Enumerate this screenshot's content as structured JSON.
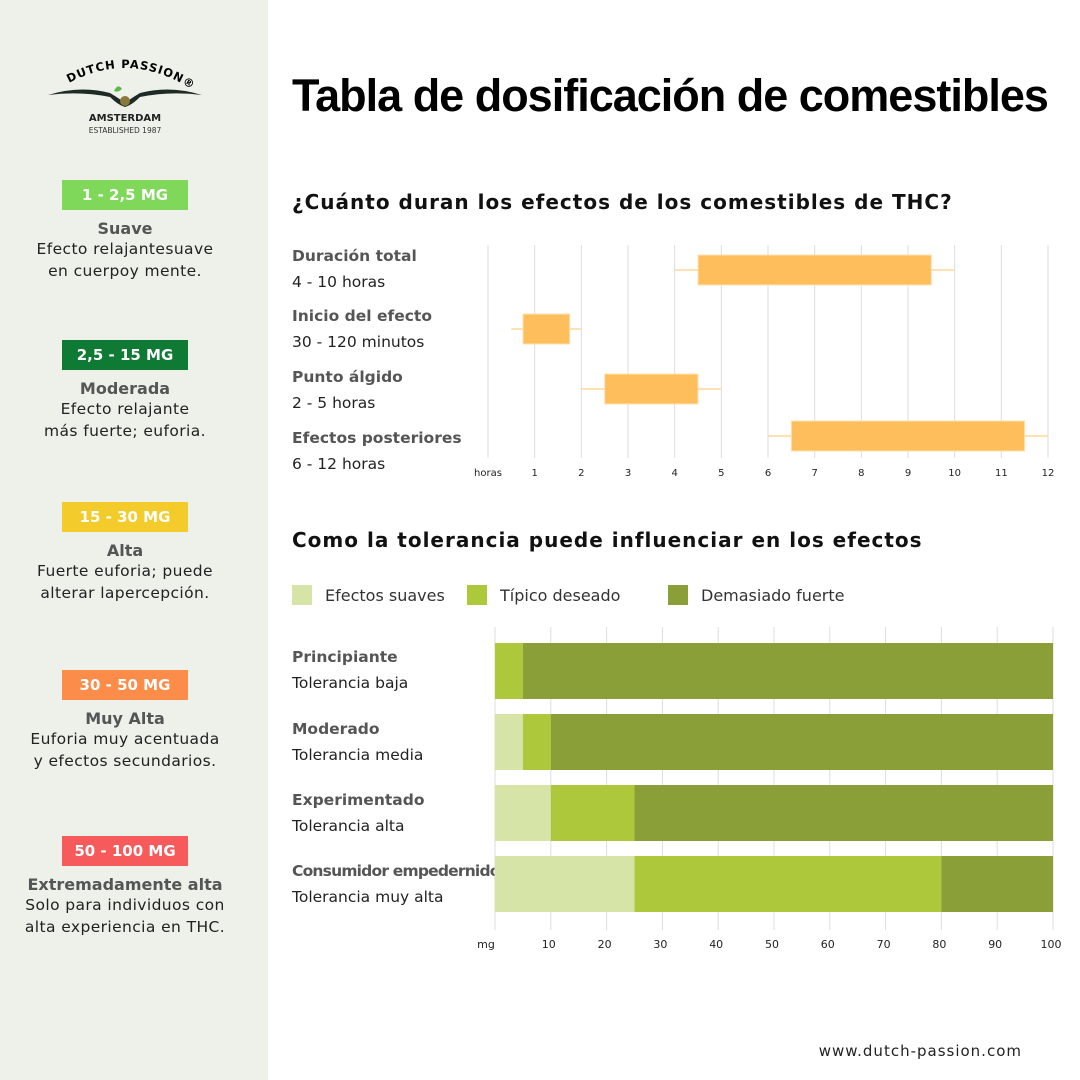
{
  "logo": {
    "brand": "DUTCH PASSION®",
    "city": "AMSTERDAM",
    "established": "ESTABLISHED 1987"
  },
  "title": "Tabla de dosificación de comestibles",
  "doses": [
    {
      "badge": "1 - 2,5 MG",
      "color": "#7fd85a",
      "title": "Suave",
      "desc1": "Efecto relajantesuave",
      "desc2": "en cuerpoy mente."
    },
    {
      "badge": "2,5 - 15 MG",
      "color": "#0f7a34",
      "title": "Moderada",
      "desc1": "Efecto relajante",
      "desc2": "más fuerte; euforia."
    },
    {
      "badge": "15 - 30 MG",
      "color": "#f3cc2c",
      "title": "Alta",
      "desc1": "Fuerte euforia; puede",
      "desc2": "alterar lapercepción."
    },
    {
      "badge": "30 - 50 MG",
      "color": "#fb8c4a",
      "title": "Muy Alta",
      "desc1": "Euforia muy acentuada",
      "desc2": "y efectos secundarios."
    },
    {
      "badge": "50 - 100 MG",
      "color": "#f65a5a",
      "title": "Extremadamente alta",
      "desc1": "Solo para individuos con",
      "desc2": "alta experiencia en THC."
    }
  ],
  "footer": "www.dutch-passion.com",
  "chart_data": [
    {
      "type": "box",
      "title": "¿Cuánto duran los efectos de los comestibles de THC?",
      "xlabel": "horas",
      "xlim": [
        0,
        12
      ],
      "xticks": [
        1,
        2,
        3,
        4,
        5,
        6,
        7,
        8,
        9,
        10,
        11,
        12
      ],
      "grid": true,
      "color": "#ffbe5c",
      "rows": [
        {
          "label": "Duración total",
          "sub": "4 - 10 horas",
          "whisker": [
            4,
            10
          ],
          "box": [
            4.5,
            9.5
          ]
        },
        {
          "label": "Inicio del efecto",
          "sub": "30 - 120 minutos",
          "whisker": [
            0.5,
            2
          ],
          "box": [
            0.75,
            1.75
          ]
        },
        {
          "label": "Punto álgido",
          "sub": "2 - 5 horas",
          "whisker": [
            2,
            5
          ],
          "box": [
            2.5,
            4.5
          ]
        },
        {
          "label": "Efectos posteriores",
          "sub": "6 - 12 horas",
          "whisker": [
            6,
            12
          ],
          "box": [
            6.5,
            11.5
          ]
        }
      ]
    },
    {
      "type": "bar",
      "stacked": true,
      "orientation": "horizontal",
      "title": "Como la tolerancia puede influenciar en los efectos",
      "xlabel": "mg",
      "xlim": [
        0,
        100
      ],
      "xticks": [
        10,
        20,
        30,
        40,
        50,
        60,
        70,
        80,
        90,
        100
      ],
      "grid": true,
      "legend": "top",
      "series": [
        {
          "name": "Efectos suaves",
          "color": "#d6e4a8"
        },
        {
          "name": "Típico deseado",
          "color": "#adc83b"
        },
        {
          "name": "Demasiado fuerte",
          "color": "#8a9f38"
        }
      ],
      "rows": [
        {
          "label": "Principiante",
          "sub": "Tolerancia baja",
          "values": [
            0,
            5,
            95
          ]
        },
        {
          "label": "Moderado",
          "sub": "Tolerancia media",
          "values": [
            5,
            5,
            90
          ]
        },
        {
          "label": "Experimentado",
          "sub": "Tolerancia alta",
          "values": [
            10,
            15,
            75
          ]
        },
        {
          "label": "Consumidor empedernido",
          "sub": "Tolerancia muy alta",
          "values": [
            25,
            55,
            20
          ]
        }
      ]
    }
  ]
}
